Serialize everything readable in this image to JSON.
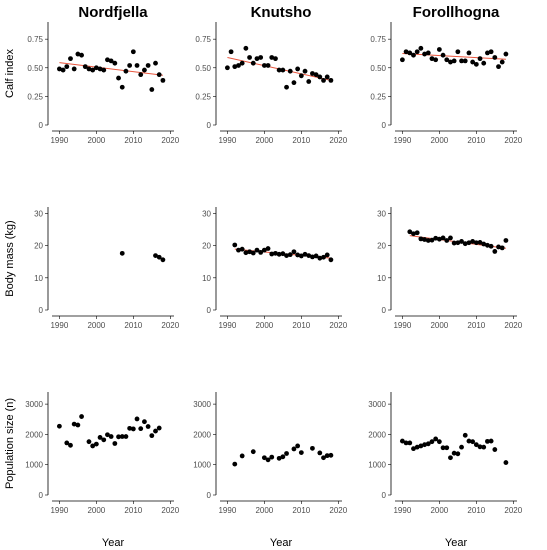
{
  "x_label": "Year",
  "colors": {
    "points": "#000000",
    "trend": "#e8553d"
  },
  "chart_data": {
    "type": "scatter",
    "columns": [
      "Nordfjella",
      "Knutsho",
      "Forollhogna"
    ],
    "rows": [
      {
        "key": "calf",
        "ylabel": "Calf index",
        "ylim": [
          0,
          0.9
        ],
        "yticks": [
          0,
          0.25,
          0.5,
          0.75
        ],
        "ytick_labels": [
          "0",
          "0.25",
          "0.50",
          "0.75"
        ]
      },
      {
        "key": "mass",
        "ylabel": "Body mass (kg)",
        "ylim": [
          0,
          32
        ],
        "yticks": [
          0,
          10,
          20,
          30
        ],
        "ytick_labels": [
          "0",
          "10",
          "20",
          "30"
        ]
      },
      {
        "key": "pop",
        "ylabel": "Population size (n)",
        "ylim": [
          0,
          3400
        ],
        "yticks": [
          0,
          1000,
          2000,
          3000
        ],
        "ytick_labels": [
          "0",
          "1000",
          "2000",
          "3000"
        ]
      }
    ],
    "xlim": [
      1988,
      2021
    ],
    "xticks": [
      1990,
      2000,
      2010,
      2020
    ],
    "xtick_labels": [
      "1990",
      "2000",
      "2010",
      "2020"
    ],
    "panels": [
      {
        "region": "Nordfjella",
        "row": "calf",
        "x": [
          1990,
          1991,
          1992,
          1993,
          1994,
          1995,
          1996,
          1997,
          1998,
          1999,
          2000,
          2001,
          2002,
          2003,
          2004,
          2005,
          2006,
          2007,
          2008,
          2009,
          2010,
          2011,
          2012,
          2013,
          2014,
          2015,
          2016,
          2017,
          2018
        ],
        "y": [
          0.49,
          0.48,
          0.51,
          0.58,
          0.49,
          0.62,
          0.61,
          0.51,
          0.49,
          0.48,
          0.5,
          0.49,
          0.48,
          0.57,
          0.56,
          0.54,
          0.41,
          0.33,
          0.47,
          0.52,
          0.64,
          0.52,
          0.44,
          0.48,
          0.52,
          0.31,
          0.54,
          0.44,
          0.39
        ],
        "trend": {
          "x": [
            1990,
            2018
          ],
          "y": [
            0.545,
            0.435
          ]
        }
      },
      {
        "region": "Knutsho",
        "row": "calf",
        "x": [
          1990,
          1991,
          1992,
          1993,
          1994,
          1995,
          1996,
          1997,
          1998,
          1999,
          2000,
          2001,
          2002,
          2003,
          2004,
          2005,
          2006,
          2007,
          2008,
          2009,
          2010,
          2011,
          2012,
          2013,
          2014,
          2015,
          2016,
          2017,
          2018
        ],
        "y": [
          0.5,
          0.64,
          0.51,
          0.52,
          0.54,
          0.67,
          0.59,
          0.54,
          0.58,
          0.59,
          0.52,
          0.52,
          0.59,
          0.58,
          0.48,
          0.48,
          0.33,
          0.47,
          0.37,
          0.49,
          0.43,
          0.47,
          0.38,
          0.45,
          0.44,
          0.42,
          0.39,
          0.42,
          0.39
        ],
        "trend": {
          "x": [
            1990,
            2018
          ],
          "y": [
            0.59,
            0.39
          ]
        }
      },
      {
        "region": "Forollhogna",
        "row": "calf",
        "x": [
          1990,
          1991,
          1992,
          1993,
          1994,
          1995,
          1996,
          1997,
          1998,
          1999,
          2000,
          2001,
          2002,
          2003,
          2004,
          2005,
          2006,
          2007,
          2008,
          2009,
          2010,
          2011,
          2012,
          2013,
          2014,
          2015,
          2016,
          2017,
          2018
        ],
        "y": [
          0.57,
          0.64,
          0.63,
          0.61,
          0.64,
          0.67,
          0.62,
          0.63,
          0.58,
          0.57,
          0.66,
          0.61,
          0.57,
          0.55,
          0.56,
          0.64,
          0.56,
          0.56,
          0.63,
          0.55,
          0.53,
          0.58,
          0.54,
          0.63,
          0.64,
          0.59,
          0.51,
          0.55,
          0.62
        ],
        "trend": {
          "x": [
            1990,
            2018
          ],
          "y": [
            0.625,
            0.575
          ]
        }
      },
      {
        "region": "Nordfjella",
        "row": "mass",
        "x": [
          2007,
          2016,
          2017,
          2018
        ],
        "y": [
          17.6,
          16.9,
          16.4,
          15.6
        ],
        "trend": null
      },
      {
        "region": "Knutsho",
        "row": "mass",
        "x": [
          1992,
          1993,
          1994,
          1995,
          1996,
          1997,
          1998,
          1999,
          2000,
          2001,
          2002,
          2003,
          2004,
          2005,
          2006,
          2007,
          2008,
          2009,
          2010,
          2011,
          2012,
          2013,
          2014,
          2015,
          2016,
          2017,
          2018
        ],
        "y": [
          20.2,
          18.6,
          18.9,
          17.8,
          18.1,
          17.7,
          18.6,
          17.9,
          18.6,
          19.1,
          17.4,
          17.6,
          17.3,
          17.5,
          16.9,
          17.2,
          18.1,
          17.1,
          16.8,
          17.3,
          16.9,
          16.5,
          16.8,
          16.1,
          16.4,
          17.1,
          15.6
        ],
        "trend": {
          "x": [
            1992,
            2018
          ],
          "y": [
            18.9,
            16.1
          ]
        }
      },
      {
        "region": "Forollhogna",
        "row": "mass",
        "x": [
          1992,
          1993,
          1994,
          1995,
          1996,
          1997,
          1998,
          1999,
          2000,
          2001,
          2002,
          2003,
          2004,
          2005,
          2006,
          2007,
          2008,
          2009,
          2010,
          2011,
          2012,
          2013,
          2014,
          2015,
          2016,
          2017,
          2018
        ],
        "y": [
          24.3,
          23.7,
          24.0,
          22.1,
          21.9,
          21.6,
          21.7,
          22.3,
          22.0,
          22.4,
          21.6,
          22.4,
          20.8,
          20.9,
          21.3,
          20.6,
          20.9,
          21.3,
          20.9,
          21.0,
          20.5,
          20.1,
          19.8,
          18.2,
          19.6,
          19.3,
          21.6
        ],
        "trend": {
          "x": [
            1992,
            2018
          ],
          "y": [
            23.1,
            19.2
          ]
        }
      },
      {
        "region": "Nordfjella",
        "row": "pop",
        "x": [
          1990,
          1992,
          1993,
          1994,
          1995,
          1996,
          1998,
          1999,
          2000,
          2001,
          2002,
          2003,
          2004,
          2005,
          2006,
          2007,
          2008,
          2009,
          2010,
          2011,
          2012,
          2013,
          2014,
          2015,
          2016,
          2017
        ],
        "y": [
          2270,
          1720,
          1640,
          2340,
          2310,
          2590,
          1760,
          1620,
          1680,
          1900,
          1820,
          1990,
          1930,
          1700,
          1920,
          1930,
          1930,
          2200,
          2180,
          2510,
          2190,
          2420,
          2260,
          1960,
          2110,
          2210
        ],
        "trend": null
      },
      {
        "region": "Knutsho",
        "row": "pop",
        "x": [
          1992,
          1994,
          1997,
          2000,
          2001,
          2002,
          2004,
          2005,
          2006,
          2008,
          2009,
          2010,
          2013,
          2015,
          2016,
          2017,
          2018
        ],
        "y": [
          1020,
          1290,
          1430,
          1230,
          1160,
          1250,
          1210,
          1260,
          1370,
          1520,
          1620,
          1400,
          1540,
          1390,
          1230,
          1300,
          1310
        ],
        "trend": null
      },
      {
        "region": "Forollhogna",
        "row": "pop",
        "x": [
          1990,
          1991,
          1992,
          1993,
          1994,
          1995,
          1996,
          1997,
          1998,
          1999,
          2000,
          2001,
          2002,
          2003,
          2004,
          2005,
          2006,
          2007,
          2008,
          2009,
          2010,
          2011,
          2012,
          2013,
          2014,
          2015,
          2018
        ],
        "y": [
          1780,
          1720,
          1720,
          1530,
          1580,
          1620,
          1660,
          1690,
          1760,
          1850,
          1760,
          1560,
          1560,
          1230,
          1380,
          1360,
          1580,
          1970,
          1780,
          1760,
          1660,
          1590,
          1580,
          1770,
          1780,
          1500,
          1070
        ],
        "trend": null
      }
    ]
  }
}
